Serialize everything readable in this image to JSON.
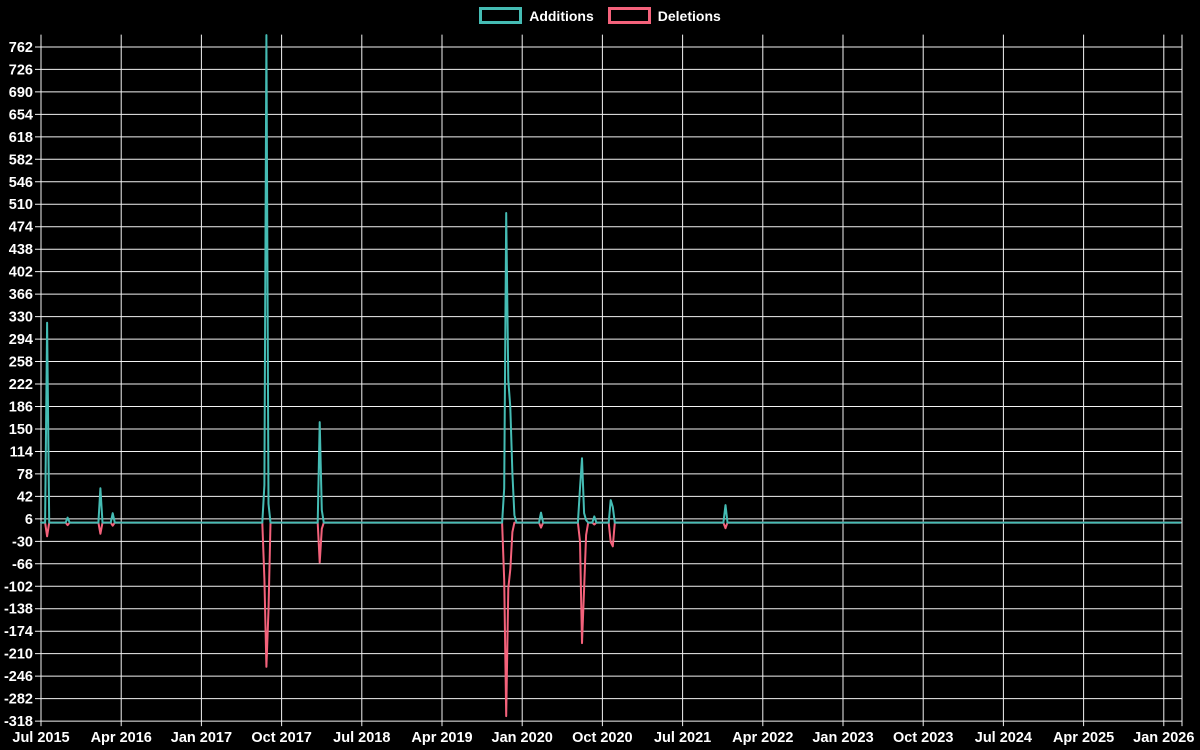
{
  "page": {
    "background_color": "#000000",
    "text_color": "#ffffff",
    "gridline_color": "#f2f2f2"
  },
  "legend": {
    "items": [
      {
        "label": "Additions",
        "color": "#45bcb4"
      },
      {
        "label": "Deletions",
        "color": "#f4627b"
      }
    ]
  },
  "chart_data": {
    "type": "line",
    "title": "",
    "xlabel": "",
    "ylabel": "",
    "grid": true,
    "legend_position": "top-center",
    "x_axis": {
      "tick_labels": [
        "Jul 2015",
        "Apr 2016",
        "Jan 2017",
        "Oct 2017",
        "Jul 2018",
        "Apr 2019",
        "Jan 2020",
        "Oct 2020",
        "Jul 2021",
        "Apr 2022",
        "Jan 2023",
        "Oct 2023",
        "Jul 2024",
        "Apr 2025",
        "Jan 2026"
      ],
      "months_between_ticks": 9,
      "start_month": "Jul 2015",
      "total_months_shown": 128
    },
    "y_axis": {
      "tick_min": -318,
      "tick_max": 762,
      "tick_step": 36,
      "data_max": 781,
      "data_min": -310
    },
    "baseline_value": 0,
    "sampling": "weekly",
    "series": [
      {
        "name": "Additions",
        "color": "#45bcb4",
        "spikes_months_from_start": [
          [
            0.73,
            320
          ],
          [
            3.03,
            8
          ],
          [
            6.62,
            55
          ],
          [
            8.08,
            15
          ],
          [
            25.08,
            60
          ],
          [
            25.31,
            781
          ],
          [
            25.54,
            30
          ],
          [
            31.2,
            161
          ],
          [
            31.43,
            20
          ],
          [
            51.9,
            55
          ],
          [
            52.2,
            496
          ],
          [
            52.45,
            228
          ],
          [
            52.7,
            185
          ],
          [
            52.9,
            79
          ],
          [
            53.1,
            12
          ],
          [
            56.2,
            16
          ],
          [
            60.55,
            55
          ],
          [
            60.8,
            103
          ],
          [
            61.02,
            15
          ],
          [
            61.25,
            4
          ],
          [
            62.0,
            10
          ],
          [
            64.0,
            36
          ],
          [
            64.25,
            25
          ],
          [
            76.8,
            28
          ]
        ]
      },
      {
        "name": "Deletions",
        "color": "#f4627b",
        "spikes_months_from_start": [
          [
            0.73,
            -22
          ],
          [
            3.03,
            -4
          ],
          [
            6.62,
            -18
          ],
          [
            8.08,
            -5
          ],
          [
            25.08,
            -90
          ],
          [
            25.31,
            -231
          ],
          [
            25.54,
            -140
          ],
          [
            31.2,
            -64
          ],
          [
            31.43,
            -10
          ],
          [
            51.9,
            -92
          ],
          [
            52.2,
            -310
          ],
          [
            52.45,
            -105
          ],
          [
            52.7,
            -75
          ],
          [
            52.9,
            -15
          ],
          [
            56.2,
            -8
          ],
          [
            60.55,
            -30
          ],
          [
            60.8,
            -193
          ],
          [
            61.02,
            -106
          ],
          [
            61.25,
            -20
          ],
          [
            62.0,
            -3
          ],
          [
            64.0,
            -31
          ],
          [
            64.25,
            -38
          ],
          [
            76.8,
            -9
          ]
        ]
      }
    ]
  }
}
